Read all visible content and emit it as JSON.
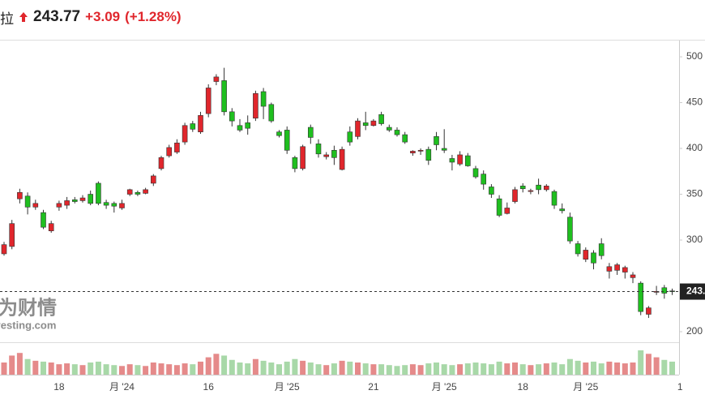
{
  "header": {
    "name": "拉",
    "price": 243.77,
    "change": "+3.09",
    "change_pct": "(+1.28%)"
  },
  "chart_data": {
    "type": "candlestick",
    "watermark": [
      "英为财情",
      "Investing.com"
    ],
    "up_color": "#e0262c",
    "down_color": "#1fbf1f",
    "vol_up_color": "#e58a8a",
    "vol_down_color": "#a8d8a8",
    "ylim": [
      190,
      518
    ],
    "yticks": [
      500,
      450,
      400,
      350,
      300,
      200
    ],
    "last_price_line": true,
    "categories": [
      null,
      null,
      null,
      null,
      null,
      null,
      null,
      "18",
      null,
      null,
      null,
      null,
      null,
      null,
      null,
      "月 '24",
      null,
      null,
      null,
      null,
      null,
      null,
      null,
      null,
      null,
      null,
      "16",
      null,
      null,
      null,
      null,
      null,
      null,
      null,
      null,
      null,
      "月 '25",
      null,
      null,
      null,
      null,
      null,
      null,
      null,
      null,
      null,
      null,
      "21",
      null,
      null,
      null,
      null,
      null,
      null,
      null,
      null,
      "月 '25",
      null,
      null,
      null,
      null,
      null,
      null,
      null,
      null,
      null,
      "18",
      null,
      null,
      null,
      null,
      null,
      null,
      null,
      "月 '25",
      null,
      null,
      null,
      null,
      null,
      null,
      null,
      null,
      null,
      null,
      null,
      "1"
    ],
    "ohlc": [
      [
        285,
        298,
        283,
        295
      ],
      [
        293,
        322,
        290,
        318
      ],
      [
        345,
        356,
        340,
        352
      ],
      [
        348,
        352,
        328,
        336
      ],
      [
        336,
        344,
        333,
        340
      ],
      [
        330,
        333,
        312,
        314
      ],
      [
        310,
        321,
        308,
        318
      ],
      [
        336,
        343,
        332,
        340
      ],
      [
        338,
        347,
        334,
        343
      ],
      [
        344,
        347,
        340,
        342
      ],
      [
        343,
        349,
        341,
        346
      ],
      [
        350,
        354,
        338,
        340
      ],
      [
        362,
        364,
        338,
        340
      ],
      [
        341,
        344,
        334,
        338
      ],
      [
        340,
        342,
        330,
        337
      ],
      [
        335,
        344,
        333,
        340
      ],
      [
        350,
        356,
        348,
        355
      ],
      [
        352,
        354,
        348,
        350
      ],
      [
        351,
        357,
        350,
        355
      ],
      [
        362,
        372,
        359,
        370
      ],
      [
        378,
        392,
        376,
        390
      ],
      [
        392,
        404,
        390,
        401
      ],
      [
        396,
        410,
        394,
        406
      ],
      [
        407,
        428,
        404,
        425
      ],
      [
        427,
        430,
        418,
        421
      ],
      [
        418,
        440,
        416,
        436
      ],
      [
        438,
        470,
        434,
        466
      ],
      [
        473,
        481,
        469,
        478
      ],
      [
        474,
        488,
        436,
        440
      ],
      [
        440,
        444,
        424,
        430
      ],
      [
        425,
        432,
        418,
        420
      ],
      [
        428,
        436,
        415,
        422
      ],
      [
        433,
        463,
        430,
        460
      ],
      [
        462,
        466,
        432,
        446
      ],
      [
        448,
        450,
        428,
        430
      ],
      [
        418,
        420,
        412,
        414
      ],
      [
        420,
        424,
        394,
        398
      ],
      [
        390,
        392,
        374,
        378
      ],
      [
        378,
        404,
        376,
        402
      ],
      [
        423,
        426,
        405,
        412
      ],
      [
        405,
        410,
        390,
        394
      ],
      [
        391,
        396,
        388,
        393
      ],
      [
        398,
        403,
        382,
        390
      ],
      [
        377,
        402,
        376,
        399
      ],
      [
        418,
        424,
        403,
        407
      ],
      [
        413,
        433,
        410,
        430
      ],
      [
        428,
        440,
        420,
        425
      ],
      [
        425,
        432,
        424,
        430
      ],
      [
        437,
        440,
        425,
        427
      ],
      [
        423,
        426,
        418,
        420
      ],
      [
        420,
        423,
        413,
        415
      ],
      [
        415,
        418,
        405,
        407
      ],
      [
        395,
        398,
        392,
        397
      ],
      [
        397,
        400,
        393,
        398
      ],
      [
        399,
        402,
        382,
        387
      ],
      [
        413,
        418,
        398,
        404
      ],
      [
        400,
        421,
        395,
        398
      ],
      [
        389,
        393,
        376,
        385
      ],
      [
        383,
        397,
        381,
        393
      ],
      [
        392,
        395,
        380,
        381
      ],
      [
        378,
        381,
        367,
        369
      ],
      [
        372,
        376,
        355,
        361
      ],
      [
        358,
        361,
        346,
        350
      ],
      [
        345,
        349,
        325,
        327
      ],
      [
        329,
        341,
        328,
        335
      ],
      [
        342,
        358,
        340,
        355
      ],
      [
        359,
        362,
        352,
        356
      ],
      [
        353,
        356,
        350,
        354
      ],
      [
        360,
        367,
        350,
        355
      ],
      [
        355,
        361,
        353,
        359
      ],
      [
        353,
        355,
        334,
        338
      ],
      [
        334,
        340,
        329,
        332
      ],
      [
        325,
        330,
        296,
        299
      ],
      [
        296,
        299,
        282,
        285
      ],
      [
        279,
        292,
        276,
        289
      ],
      [
        286,
        289,
        268,
        275
      ],
      [
        296,
        302,
        279,
        283
      ],
      [
        266,
        275,
        258,
        271
      ],
      [
        267,
        275,
        262,
        273
      ],
      [
        265,
        272,
        258,
        270
      ],
      [
        259,
        265,
        253,
        262
      ],
      [
        253,
        255,
        218,
        222
      ],
      [
        219,
        228,
        215,
        226
      ],
      [
        243,
        250,
        240,
        244
      ],
      [
        248,
        251,
        236,
        242
      ],
      [
        244.5,
        247,
        240,
        243.77
      ],
      null
    ],
    "volume": [
      14,
      22,
      25,
      18,
      16,
      15,
      14,
      12,
      13,
      12,
      11,
      14,
      15,
      12,
      11,
      10,
      12,
      11,
      10,
      14,
      13,
      12,
      11,
      13,
      12,
      15,
      20,
      24,
      22,
      17,
      14,
      13,
      18,
      16,
      14,
      12,
      15,
      18,
      16,
      14,
      12,
      11,
      13,
      16,
      15,
      14,
      13,
      12,
      12,
      11,
      10,
      11,
      12,
      11,
      13,
      14,
      12,
      11,
      12,
      13,
      14,
      13,
      12,
      15,
      13,
      14,
      12,
      11,
      12,
      13,
      14,
      12,
      18,
      16,
      14,
      15,
      13,
      15,
      14,
      13,
      14,
      28,
      24,
      20,
      17,
      15,
      null
    ]
  }
}
